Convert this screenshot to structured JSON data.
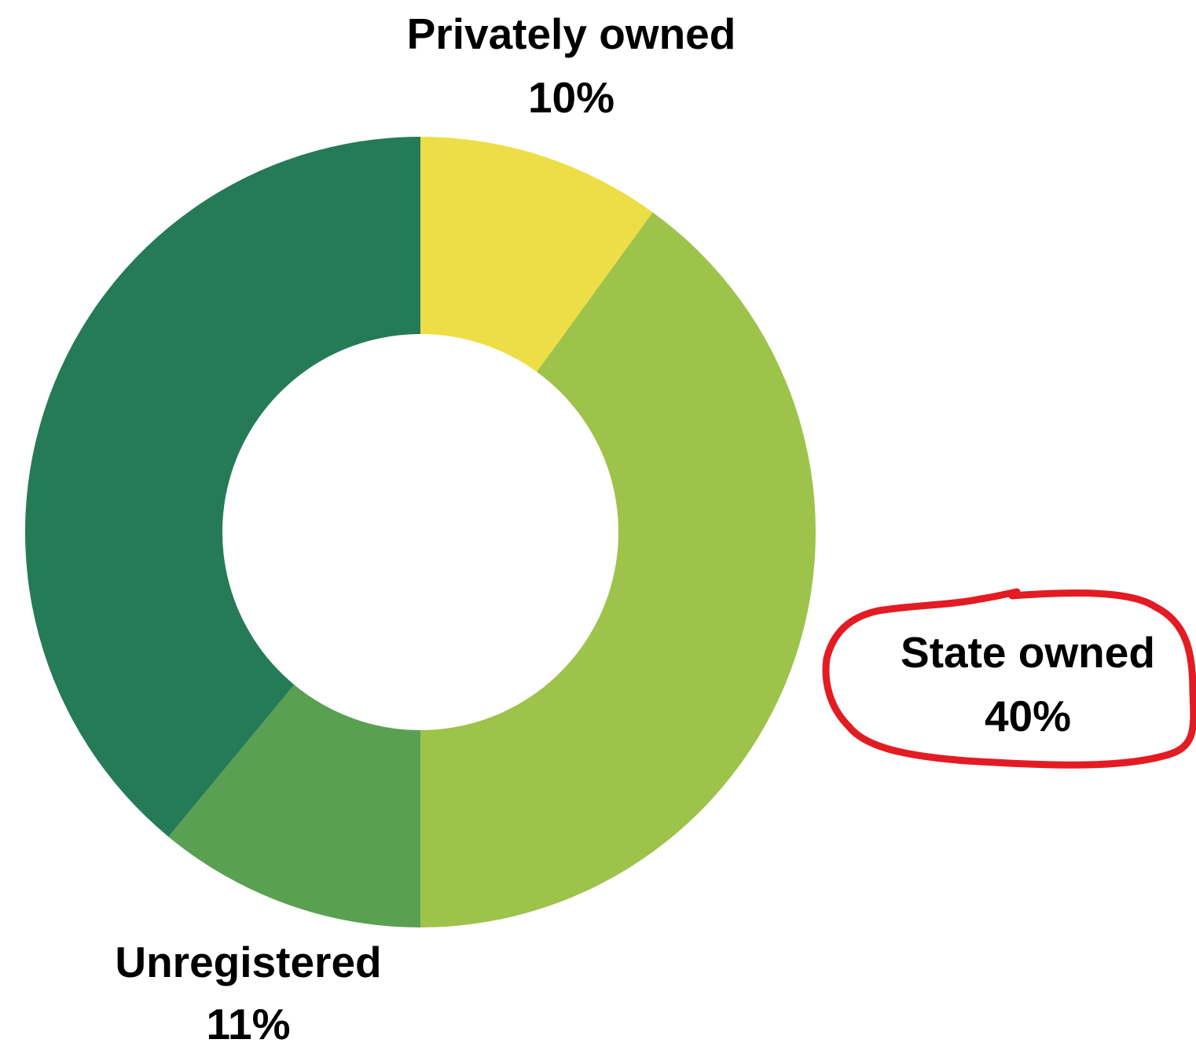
{
  "chart_data": {
    "type": "pie",
    "style": "donut",
    "start": "top, clockwise",
    "slices": [
      {
        "label": "Privately owned",
        "value": 10,
        "value_label": "10%",
        "color": "#EDDE47"
      },
      {
        "label": "State owned",
        "value": 40,
        "value_label": "40%",
        "color": "#9DC34A",
        "highlighted": true
      },
      {
        "label": "Unregistered",
        "value": 11,
        "value_label": "11%",
        "color": "#5AA052"
      },
      {
        "label": "",
        "value": 39,
        "value_label": "",
        "color": "#257B57"
      }
    ],
    "legend": "none",
    "grid": false
  },
  "annotation": {
    "type": "hand-drawn circle",
    "target": "State owned",
    "color": "#E31B23"
  }
}
